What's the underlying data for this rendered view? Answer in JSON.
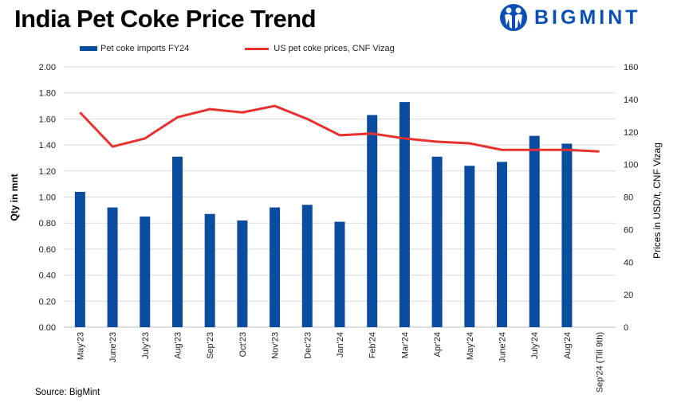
{
  "title": "India Pet Coke Price Trend",
  "logo": {
    "text": "BIGMINT",
    "color": "#0a4fb5"
  },
  "source": "Source:  BigMint",
  "chart_data": {
    "type": "bar+line",
    "title": "India Pet Coke Price Trend",
    "categories": [
      "May'23",
      "June'23",
      "July'23",
      "Aug'23",
      "Sep'23",
      "Oct'23",
      "Nov'23",
      "Dec'23",
      "Jan'24",
      "Feb'24",
      "Mar'24",
      "Apr'24",
      "May'24",
      "June'24",
      "July'24",
      "Aug'24",
      "Sep'24 (Till 9th)"
    ],
    "series": [
      {
        "name": "Pet coke imports FY24",
        "type": "bar",
        "axis": "left",
        "color": "#0a4ca0",
        "values": [
          1.04,
          0.92,
          0.85,
          1.31,
          0.87,
          0.82,
          0.92,
          0.94,
          0.81,
          1.63,
          1.73,
          1.31,
          1.24,
          1.27,
          1.47,
          1.41,
          null
        ]
      },
      {
        "name": "US pet coke prices, CNF Vizag",
        "type": "line",
        "axis": "right",
        "color": "#e8312e",
        "values": [
          132,
          111,
          116,
          129,
          134,
          132,
          136,
          128,
          118,
          119,
          116,
          114,
          113,
          109,
          109,
          109,
          108
        ]
      }
    ],
    "ylabel_left": "Qty in mnt",
    "ylabel_right": "Prices in USD/t, CNF Vizag",
    "ylim_left": [
      0,
      2.0
    ],
    "yticks_left": [
      "0.00",
      "0.20",
      "0.40",
      "0.60",
      "0.80",
      "1.00",
      "1.20",
      "1.40",
      "1.60",
      "1.80",
      "2.00"
    ],
    "ylim_right": [
      0,
      160
    ],
    "yticks_right": [
      "0",
      "20",
      "40",
      "60",
      "80",
      "100",
      "120",
      "140",
      "160"
    ],
    "grid": true,
    "legend": "top"
  }
}
